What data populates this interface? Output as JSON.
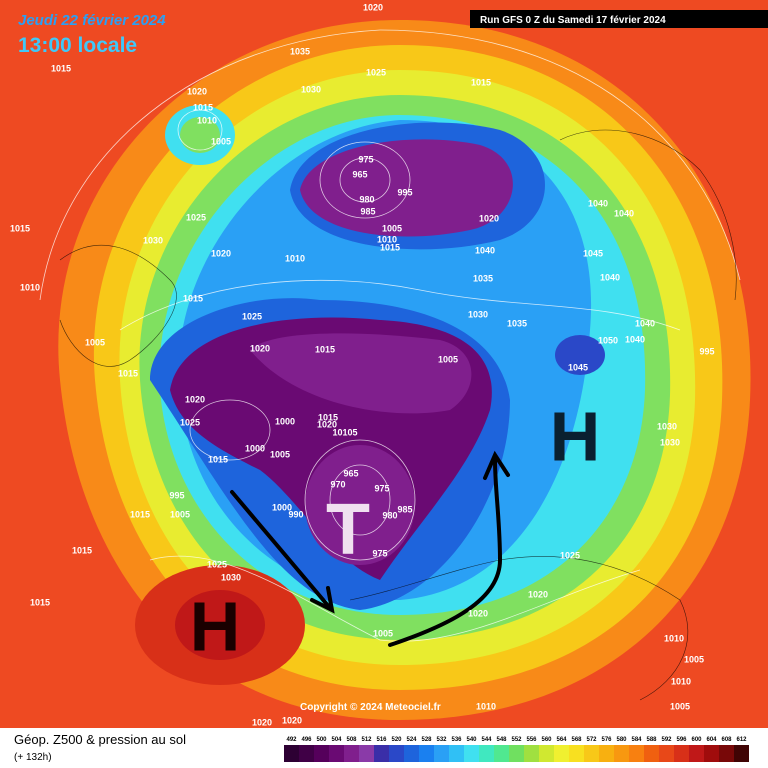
{
  "header": {
    "date": "Jeudi 22 février 2024",
    "time": "13:00 locale",
    "run": "Run GFS 0 Z du Samedi 17 février 2024"
  },
  "map_labels": {
    "high_west": "H",
    "low": "T",
    "high_east": "H"
  },
  "isobars": [
    1020,
    1035,
    1025,
    1015,
    1030,
    1015,
    1020,
    1015,
    1010,
    1005,
    975,
    965,
    980,
    985,
    995,
    1005,
    1010,
    1015,
    1020,
    1040,
    1040,
    1025,
    1030,
    1020,
    1010,
    1040,
    1045,
    1035,
    1040,
    1015,
    1010,
    1015,
    1025,
    1030,
    1035,
    1040,
    1050,
    1040,
    1005,
    1020,
    1015,
    1005,
    1045,
    995,
    1015,
    1020,
    1025,
    1000,
    1015,
    1020,
    10105,
    1000,
    1005,
    1015,
    1030,
    1030,
    965,
    970,
    975,
    1000,
    990,
    980,
    985,
    995,
    1005,
    1015,
    975,
    1015,
    1025,
    1030,
    1025,
    1015,
    1020,
    1020,
    1005,
    1010,
    1005,
    1010,
    1010,
    1005,
    1020,
    1020
  ],
  "footer": {
    "copyright": "Copyright © 2024 Meteociel.fr",
    "title": "Géop. Z500 & pression au sol",
    "lead": "(+ 132h)"
  },
  "scale": {
    "values": [
      492,
      496,
      500,
      504,
      508,
      512,
      516,
      520,
      524,
      528,
      532,
      536,
      540,
      544,
      548,
      552,
      556,
      560,
      564,
      568,
      572,
      576,
      580,
      584,
      588,
      592,
      596,
      600,
      604,
      608,
      612
    ],
    "colors": [
      "#2d0033",
      "#400046",
      "#55005b",
      "#6a0a73",
      "#801f8d",
      "#8a3aa8",
      "#3a2ea8",
      "#2a48c8",
      "#1e64dc",
      "#1a80f0",
      "#2aa0f5",
      "#30c0f5",
      "#40e0f0",
      "#40e8c0",
      "#50e890",
      "#70e060",
      "#a0e040",
      "#d0e830",
      "#f0f030",
      "#f8e020",
      "#f8c818",
      "#f8b010",
      "#f89810",
      "#f88010",
      "#f06010",
      "#e84818",
      "#d83018",
      "#c01818",
      "#a00c0c",
      "#780808",
      "#400404"
    ]
  }
}
